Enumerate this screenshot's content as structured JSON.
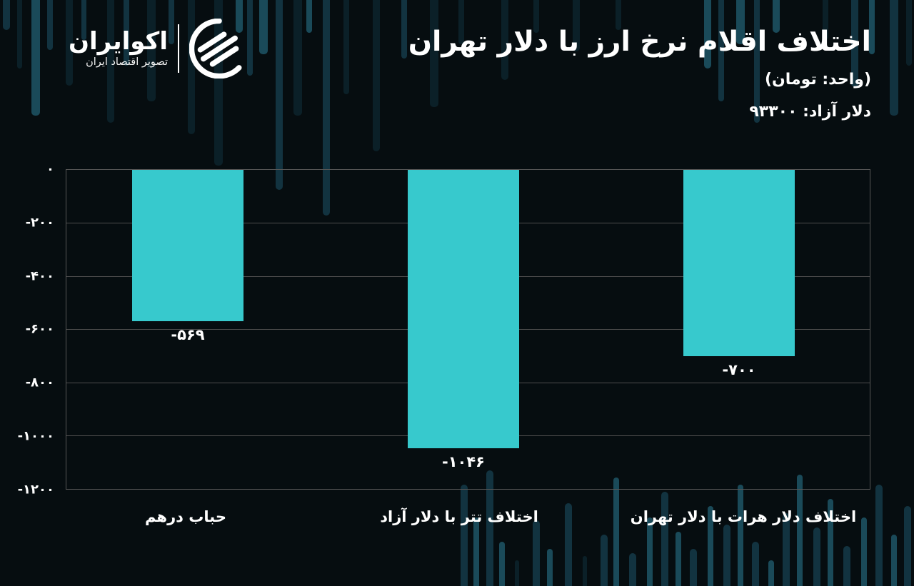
{
  "brand": {
    "name": "اکوایران",
    "tagline": "تصویر اقتصاد ایران",
    "logo_icon": "ecoiran-striped-circle-logo"
  },
  "header": {
    "title": "اختلاف اقلام نرخ ارز با دلار تهران",
    "unit_subtitle": "(واحد: تومان)",
    "reference_rate": "دلار آزاد: ۹۳۳۰۰"
  },
  "chart_data": {
    "type": "bar",
    "title": "اختلاف اقلام نرخ ارز با دلار تهران",
    "unit": "تومان",
    "categories": [
      "حباب درهم",
      "اختلاف تتر با دلار آزاد",
      "اختلاف دلار هرات با دلار تهران"
    ],
    "values": [
      -569,
      -1046,
      -700
    ],
    "value_labels": [
      "-۵۶۹",
      "-۱۰۴۶",
      "-۷۰۰"
    ],
    "y_ticks": [
      "۰",
      "-۲۰۰",
      "-۴۰۰",
      "-۶۰۰",
      "-۸۰۰",
      "-۱۰۰۰",
      "-۱۲۰۰"
    ],
    "y_tick_values": [
      0,
      -200,
      -400,
      -600,
      -800,
      -1000,
      -1200
    ],
    "ylim": [
      0,
      -1200
    ],
    "grid": true,
    "legend": "none",
    "bar_color": "#37c9cd",
    "reference": {
      "label": "دلار آزاد",
      "value_fa": "۹۳۳۰۰",
      "value": 93300
    }
  },
  "colors": {
    "background": "#060d10",
    "accent_teal": "#37c9cd",
    "grid": "#4e4e4e",
    "text": "#ffffff",
    "deco_dark": "#0b2028",
    "deco_mid": "#123340",
    "deco_light": "#1a4a59"
  }
}
